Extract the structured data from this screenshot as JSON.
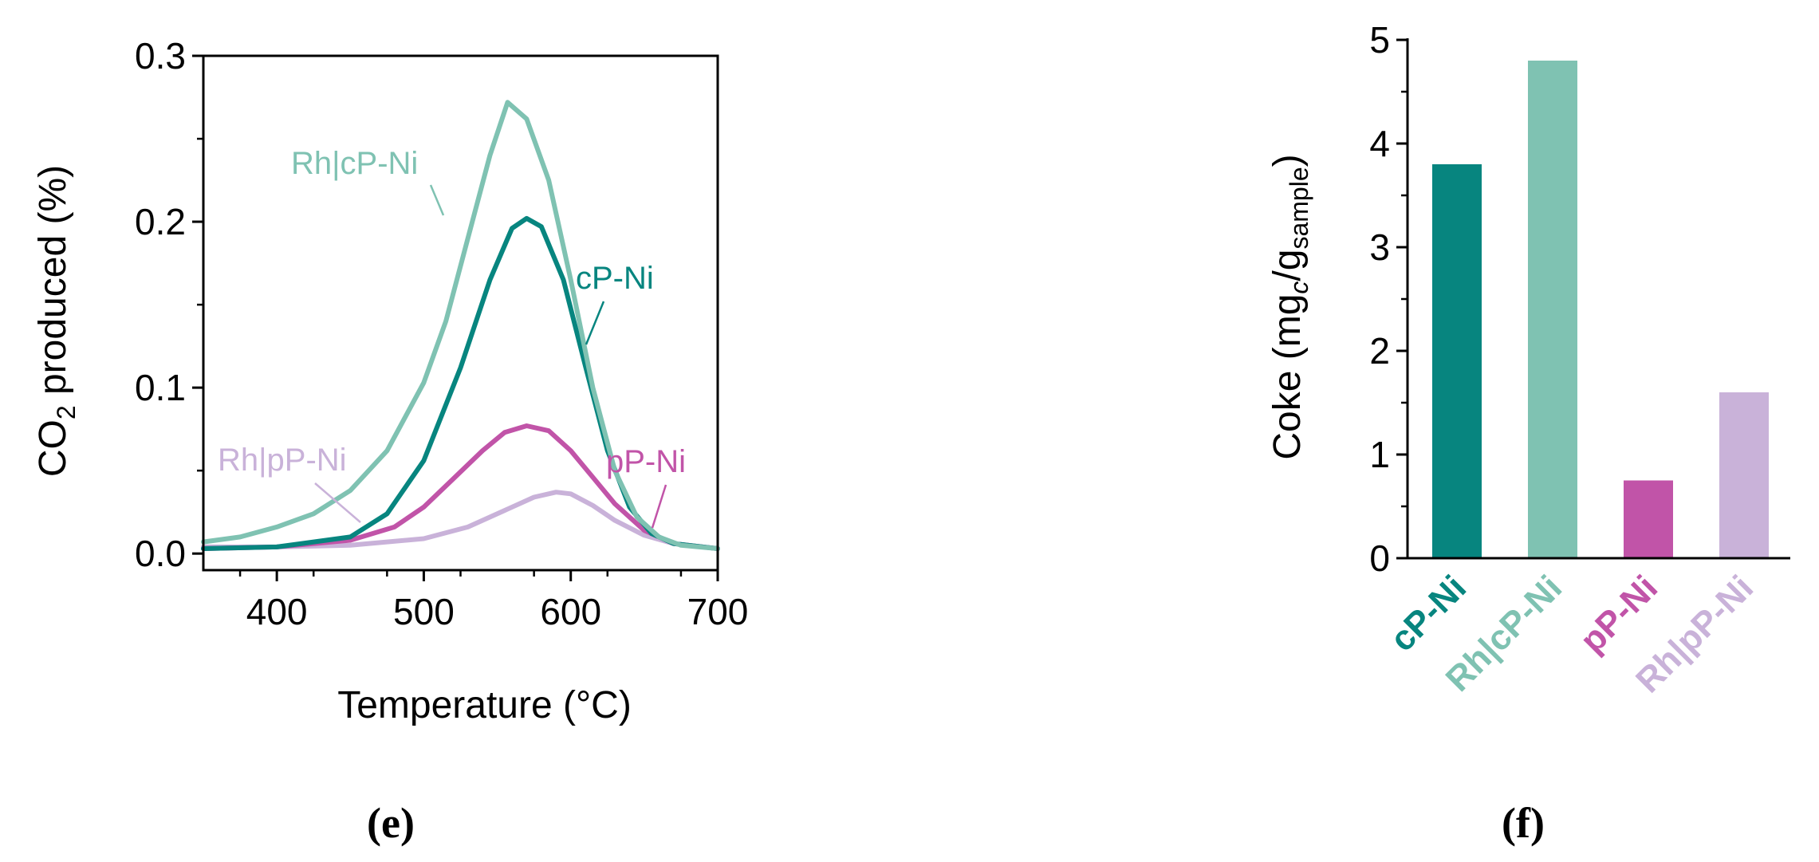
{
  "chart_data": [
    {
      "panel": "(e)",
      "type": "line",
      "xlabel": "Temperature (°C)",
      "ylabel": "CO2 produced (%)",
      "ylabel_parts": [
        "CO",
        "2",
        " produced (%)"
      ],
      "xlim": [
        350,
        700
      ],
      "ylim": [
        -0.01,
        0.3
      ],
      "xticks": [
        400,
        500,
        600,
        700
      ],
      "xtick_labels": [
        "400",
        "500",
        "600",
        "700"
      ],
      "yticks": [
        0.0,
        0.1,
        0.2,
        0.3
      ],
      "ytick_labels": [
        "0.0",
        "0.1",
        "0.2",
        "0.3"
      ],
      "grid": false,
      "series": [
        {
          "name": "Rh|cP-Ni",
          "color": "#7fc2b2",
          "x": [
            350,
            375,
            400,
            425,
            450,
            475,
            500,
            515,
            530,
            545,
            557,
            570,
            585,
            600,
            615,
            630,
            645,
            660,
            675,
            700
          ],
          "y": [
            0.007,
            0.01,
            0.016,
            0.024,
            0.038,
            0.062,
            0.103,
            0.14,
            0.19,
            0.24,
            0.272,
            0.262,
            0.225,
            0.165,
            0.1,
            0.05,
            0.022,
            0.01,
            0.005,
            0.003
          ]
        },
        {
          "name": "cP-Ni",
          "color": "#07857f",
          "x": [
            350,
            400,
            450,
            475,
            500,
            525,
            545,
            560,
            570,
            580,
            595,
            610,
            625,
            640,
            655,
            670,
            700
          ],
          "y": [
            0.003,
            0.004,
            0.01,
            0.024,
            0.056,
            0.112,
            0.165,
            0.196,
            0.202,
            0.197,
            0.165,
            0.113,
            0.062,
            0.028,
            0.012,
            0.006,
            0.003
          ]
        },
        {
          "name": "pP-Ni",
          "color": "#c154a8",
          "x": [
            350,
            400,
            450,
            480,
            500,
            520,
            540,
            555,
            570,
            585,
            600,
            615,
            630,
            650,
            670,
            700
          ],
          "y": [
            0.003,
            0.004,
            0.008,
            0.016,
            0.028,
            0.045,
            0.062,
            0.073,
            0.077,
            0.074,
            0.062,
            0.046,
            0.03,
            0.014,
            0.006,
            0.003
          ]
        },
        {
          "name": "Rh|pP-Ni",
          "color": "#c9b2d9",
          "x": [
            350,
            400,
            450,
            500,
            530,
            555,
            575,
            590,
            600,
            615,
            630,
            650,
            670,
            700
          ],
          "y": [
            0.004,
            0.004,
            0.005,
            0.009,
            0.016,
            0.026,
            0.034,
            0.037,
            0.036,
            0.029,
            0.02,
            0.011,
            0.006,
            0.003
          ]
        }
      ],
      "annotations": [
        {
          "text": "Rh|cP-Ni",
          "series": "Rh|cP-Ni"
        },
        {
          "text": "cP-Ni",
          "series": "cP-Ni"
        },
        {
          "text": "Rh|pP-Ni",
          "series": "Rh|pP-Ni"
        },
        {
          "text": "pP-Ni",
          "series": "pP-Ni"
        }
      ]
    },
    {
      "panel": "(f)",
      "type": "bar",
      "ylabel": "Coke (mgc/gsample)",
      "ylabel_parts": [
        "Coke (mg",
        "c",
        "/g",
        "sample",
        ")"
      ],
      "ylim": [
        0,
        5
      ],
      "yticks": [
        0,
        1,
        2,
        3,
        4,
        5
      ],
      "ytick_labels": [
        "0",
        "1",
        "2",
        "3",
        "4",
        "5"
      ],
      "grid": false,
      "categories": [
        "cP-Ni",
        "Rh|cP-Ni",
        "pP-Ni",
        "Rh|pP-Ni"
      ],
      "values": [
        3.8,
        4.8,
        0.75,
        1.6
      ],
      "colors": [
        "#07857f",
        "#7fc2b2",
        "#c154a8",
        "#c9b2d9"
      ]
    }
  ]
}
